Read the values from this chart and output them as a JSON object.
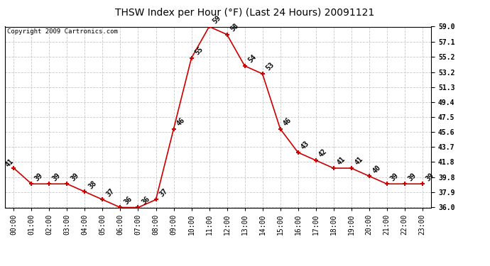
{
  "title": "THSW Index per Hour (°F) (Last 24 Hours) 20091121",
  "copyright": "Copyright 2009 Cartronics.com",
  "hours": [
    0,
    1,
    2,
    3,
    4,
    5,
    6,
    7,
    8,
    9,
    10,
    11,
    12,
    13,
    14,
    15,
    16,
    17,
    18,
    19,
    20,
    21,
    22,
    23
  ],
  "values": [
    41,
    39,
    39,
    39,
    38,
    37,
    36,
    36,
    37,
    46,
    55,
    59,
    58,
    54,
    53,
    46,
    43,
    42,
    41,
    41,
    40,
    39,
    39,
    39
  ],
  "xlabels": [
    "00:00",
    "01:00",
    "02:00",
    "03:00",
    "04:00",
    "05:00",
    "06:00",
    "07:00",
    "08:00",
    "09:00",
    "10:00",
    "11:00",
    "12:00",
    "13:00",
    "14:00",
    "15:00",
    "16:00",
    "17:00",
    "18:00",
    "19:00",
    "20:00",
    "21:00",
    "22:00",
    "23:00"
  ],
  "ylim": [
    36.0,
    59.0
  ],
  "yticks": [
    36.0,
    37.9,
    39.8,
    41.8,
    43.7,
    45.6,
    47.5,
    49.4,
    51.3,
    53.2,
    55.2,
    57.1,
    59.0
  ],
  "ytick_labels": [
    "36.0",
    "37.9",
    "39.8",
    "41.8",
    "43.7",
    "45.6",
    "47.5",
    "49.4",
    "51.3",
    "53.2",
    "55.2",
    "57.1",
    "59.0"
  ],
  "line_color": "#cc0000",
  "marker_color": "#cc0000",
  "grid_color": "#c8c8c8",
  "background_color": "#ffffff",
  "title_fontsize": 10,
  "label_fontsize": 7,
  "annotation_fontsize": 7,
  "copyright_fontsize": 6.5
}
